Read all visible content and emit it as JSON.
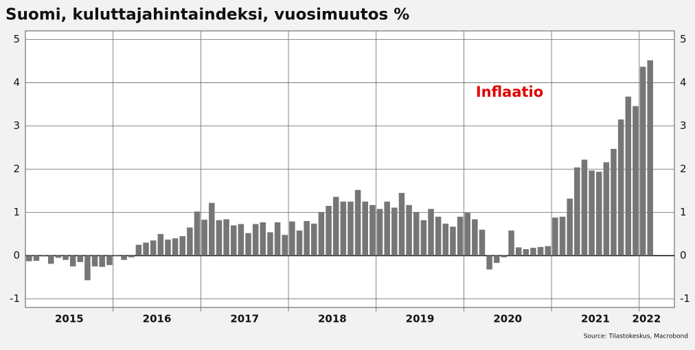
{
  "chart_data": {
    "type": "bar",
    "title": "Suomi, kuluttajahintaindeksi, vuosimuutos %",
    "annotation": "Inflaatio",
    "source": "Source: Tilastokeskus, Macrobond",
    "categories": [
      "2015",
      "2015",
      "2015",
      "2015",
      "2015",
      "2015",
      "2015",
      "2015",
      "2015",
      "2015",
      "2015",
      "2015",
      "2016",
      "2016",
      "2016",
      "2016",
      "2016",
      "2016",
      "2016",
      "2016",
      "2016",
      "2016",
      "2016",
      "2016",
      "2017",
      "2017",
      "2017",
      "2017",
      "2017",
      "2017",
      "2017",
      "2017",
      "2017",
      "2017",
      "2017",
      "2017",
      "2018",
      "2018",
      "2018",
      "2018",
      "2018",
      "2018",
      "2018",
      "2018",
      "2018",
      "2018",
      "2018",
      "2018",
      "2019",
      "2019",
      "2019",
      "2019",
      "2019",
      "2019",
      "2019",
      "2019",
      "2019",
      "2019",
      "2019",
      "2019",
      "2020",
      "2020",
      "2020",
      "2020",
      "2020",
      "2020",
      "2020",
      "2020",
      "2020",
      "2020",
      "2020",
      "2020",
      "2021",
      "2021",
      "2021",
      "2021",
      "2021",
      "2021",
      "2021",
      "2021",
      "2021",
      "2021",
      "2021",
      "2021",
      "2022",
      "2022"
    ],
    "values": [
      -0.13,
      -0.12,
      -0.02,
      -0.19,
      -0.05,
      -0.1,
      -0.25,
      -0.15,
      -0.57,
      -0.25,
      -0.26,
      -0.22,
      -0.01,
      -0.1,
      -0.04,
      0.25,
      0.3,
      0.35,
      0.5,
      0.37,
      0.4,
      0.45,
      0.65,
      1.02,
      0.83,
      1.22,
      0.82,
      0.84,
      0.7,
      0.73,
      0.52,
      0.73,
      0.77,
      0.54,
      0.77,
      0.48,
      0.79,
      0.58,
      0.8,
      0.74,
      1.01,
      1.15,
      1.36,
      1.25,
      1.25,
      1.52,
      1.25,
      1.17,
      1.08,
      1.25,
      1.11,
      1.45,
      1.17,
      1.01,
      0.82,
      1.08,
      0.9,
      0.74,
      0.67,
      0.9,
      0.99,
      0.84,
      0.6,
      -0.32,
      -0.17,
      -0.04,
      0.58,
      0.19,
      0.15,
      0.18,
      0.2,
      0.22,
      0.88,
      0.9,
      1.32,
      2.04,
      2.22,
      1.97,
      1.94,
      2.16,
      2.47,
      3.15,
      3.68,
      3.46,
      4.37,
      4.52
    ],
    "color": "#767676",
    "ylim": [
      -1.2,
      5.2
    ],
    "yticks": [
      -1,
      0,
      1,
      2,
      3,
      4,
      5
    ],
    "grid": true
  }
}
